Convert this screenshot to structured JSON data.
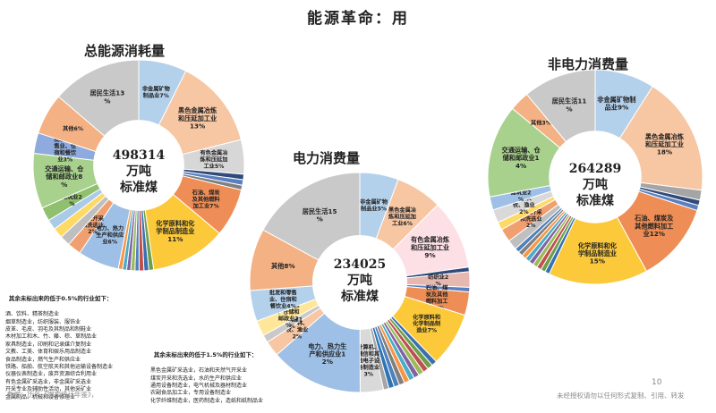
{
  "page": {
    "title": "能源革命：用",
    "page_number": "10",
    "source": "数据：历年《国家统计年鉴》，",
    "copyright": "未经授权请勿以任何形式复制、引用、转发"
  },
  "notes": {
    "left_heading": "其余未标出来的低于0.5%的行业如下：",
    "left_lines": [
      "酒、饮料、精茶制造业",
      "烟草制造业，纺织服装、服饰业",
      "皮革、毛皮、羽毛及其制品和制鞋业",
      "木材加工和木、竹、藤、棕、草制品业",
      "家具制造业，印刷和记录媒介复制业",
      "文教、工美、体育和娱乐用品制造业",
      "食品制造业，燃气生产和供应业",
      "铁路、船舶、航空航天和其他运输设备制造业",
      "仪器仪表制造业，废弃资源综合利用业",
      "有色金属矿采选业，非金属矿采选业",
      "开采专业及辅助性活动，其他采矿业",
      "金属制品、机械和设备修理业"
    ],
    "right_heading": "其余未标出来的低于1.5%的行业如下：",
    "right_lines": [
      "黑色金属矿采选业，石油和天然气开采业",
      "煤炭开采和洗选业，水的生产和供应业",
      "通用设备制造业，电气机械及器材制造业",
      "农副食品加工业，专用设备制造业",
      "化学纤维制造业，医药制造业，造纸和纸制品业"
    ]
  },
  "chart_data": [
    {
      "type": "pie",
      "title": "总能源消耗量",
      "center": [
        "498314",
        "万吨",
        "标准煤"
      ],
      "slices": [
        {
          "label": "非金属矿物制品业7%",
          "value": 7,
          "color": "#b4d1ec"
        },
        {
          "label": "黑色金属冶炼和压延加工业13%",
          "value": 13,
          "color": "#f7c6a3"
        },
        {
          "label": "有色金属冶炼和压延加工业5%",
          "value": 5,
          "color": "#d7d7d7"
        },
        {
          "label": "",
          "value": 0.8,
          "color": "#2e4b7c"
        },
        {
          "label": "",
          "value": 0.8,
          "color": "#5a7fc0"
        },
        {
          "label": "",
          "value": 0.7,
          "color": "#7f7f7f"
        },
        {
          "label": "石油、煤炭及其他燃料加工业7%",
          "value": 7,
          "color": "#ee8d55"
        },
        {
          "label": "化学原料和化学制品制造业11%",
          "value": 11,
          "color": "#fbc93a"
        },
        {
          "label": "",
          "value": 0.7,
          "color": "#6b9f4a"
        },
        {
          "label": "",
          "value": 0.7,
          "color": "#3a6fb0"
        },
        {
          "label": "",
          "value": 0.7,
          "color": "#c0504d"
        },
        {
          "label": "",
          "value": 0.6,
          "color": "#4f81bd"
        },
        {
          "label": "",
          "value": 0.6,
          "color": "#9bbb59"
        },
        {
          "label": "",
          "value": 0.6,
          "color": "#8064a2"
        },
        {
          "label": "",
          "value": 0.6,
          "color": "#4bacc6"
        },
        {
          "label": "",
          "value": 0.6,
          "color": "#f79646"
        },
        {
          "label": "电力、热力生产和供应业6%",
          "value": 6,
          "color": "#9ec0e6"
        },
        {
          "label": "煤炭开采和洗选业2%",
          "value": 2,
          "color": "#f0a070"
        },
        {
          "label": "",
          "value": 1.5,
          "color": "#bfbfbf"
        },
        {
          "label": "",
          "value": 1.5,
          "color": "#ffd966"
        },
        {
          "label": "",
          "value": 1.5,
          "color": "#a9cbe8"
        },
        {
          "label": "建筑业2%",
          "value": 2,
          "color": "#8fbf6f"
        },
        {
          "label": "交通运输、仓储和邮政业8%",
          "value": 8,
          "color": "#a8d18d"
        },
        {
          "label": "批发和零售业、住宿和餐饮业3%",
          "value": 3,
          "color": "#8faadc"
        },
        {
          "label": "其他6%",
          "value": 6,
          "color": "#f4b183"
        },
        {
          "label": "居民生活13%",
          "value": 13,
          "color": "#c9c9c9"
        }
      ]
    },
    {
      "type": "pie",
      "title": "电力消费量",
      "center": [
        "234025",
        "万吨",
        "标准煤"
      ],
      "slices": [
        {
          "label": "非金属矿物制品业5%",
          "value": 5,
          "color": "#b4d1ec"
        },
        {
          "label": "黑色金属冶炼和压延加工业6%",
          "value": 6,
          "color": "#f7c6a3"
        },
        {
          "label": "有色金属冶炼和压延加工业9%",
          "value": 9,
          "color": "#fde0e6"
        },
        {
          "label": "",
          "value": 0.6,
          "color": "#2e4b7c"
        },
        {
          "label": "纺织业2%",
          "value": 2,
          "color": "#e6b8af"
        },
        {
          "label": "",
          "value": 0.6,
          "color": "#5a7fc0"
        },
        {
          "label": "石油、煤炭及其他燃料加工业3%",
          "value": 3,
          "color": "#ee8d55"
        },
        {
          "label": "化学原料和化学制品制造业7%",
          "value": 7,
          "color": "#fbc93a"
        },
        {
          "label": "",
          "value": 0.7,
          "color": "#3a6fb0"
        },
        {
          "label": "",
          "value": 0.7,
          "color": "#6b9f4a"
        },
        {
          "label": "",
          "value": 0.7,
          "color": "#c0504d"
        },
        {
          "label": "",
          "value": 0.7,
          "color": "#9bbb59"
        },
        {
          "label": "",
          "value": 0.7,
          "color": "#8064a2"
        },
        {
          "label": "",
          "value": 0.7,
          "color": "#4bacc6"
        },
        {
          "label": "",
          "value": 0.7,
          "color": "#f79646"
        },
        {
          "label": "",
          "value": 0.7,
          "color": "#7f7f7f"
        },
        {
          "label": "",
          "value": 0.7,
          "color": "#4f81bd"
        },
        {
          "label": "",
          "value": 0.7,
          "color": "#2e75b6"
        },
        {
          "label": "",
          "value": 0.7,
          "color": "#a5a5a5"
        },
        {
          "label": "计算机、通信和其他电子设备制造业3%",
          "value": 3,
          "color": "#d9d9d9"
        },
        {
          "label": "电力、热力生产和供应业12%",
          "value": 12,
          "color": "#9ec0e6"
        },
        {
          "label": "农、林、牧、渔业2%",
          "value": 2,
          "color": "#f7c6a3"
        },
        {
          "label": "建筑业1%",
          "value": 1,
          "color": "#c9c9c9"
        },
        {
          "label": "交通运输、仓储和邮政业2%",
          "value": 2,
          "color": "#ffe699"
        },
        {
          "label": "批发和零售业、住宿和餐饮业4%",
          "value": 4,
          "color": "#b4d1ec"
        },
        {
          "label": "其他8%",
          "value": 8,
          "color": "#f4b183"
        },
        {
          "label": "居民生活15%",
          "value": 15,
          "color": "#c9c9c9"
        }
      ]
    },
    {
      "type": "pie",
      "title": "非电力消费量",
      "center": [
        "264289",
        "万吨",
        "标准煤"
      ],
      "slices": [
        {
          "label": "非金属矿物制品业9%",
          "value": 9,
          "color": "#b4d1ec"
        },
        {
          "label": "黑色金属冶炼和压延加工业18%",
          "value": 18,
          "color": "#f7c6a3"
        },
        {
          "label": "",
          "value": 1.5,
          "color": "#a5a5a5"
        },
        {
          "label": "",
          "value": 0.8,
          "color": "#2e4b7c"
        },
        {
          "label": "",
          "value": 0.8,
          "color": "#5a7fc0"
        },
        {
          "label": "石油、煤炭及其他燃料加工业12%",
          "value": 12,
          "color": "#ee8d55"
        },
        {
          "label": "化学原料和化学制品制造业15%",
          "value": 15,
          "color": "#fbc93a"
        },
        {
          "label": "",
          "value": 0.7,
          "color": "#3a6fb0"
        },
        {
          "label": "",
          "value": 0.7,
          "color": "#6b9f4a"
        },
        {
          "label": "",
          "value": 0.7,
          "color": "#c0504d"
        },
        {
          "label": "",
          "value": 0.7,
          "color": "#9bbb59"
        },
        {
          "label": "",
          "value": 0.7,
          "color": "#8064a2"
        },
        {
          "label": "",
          "value": 0.7,
          "color": "#4bacc6"
        },
        {
          "label": "",
          "value": 0.7,
          "color": "#f79646"
        },
        {
          "label": "",
          "value": 0.7,
          "color": "#7f7f7f"
        },
        {
          "label": "",
          "value": 0.7,
          "color": "#4f81bd"
        },
        {
          "label": "",
          "value": 1.5,
          "color": "#bfbfbf"
        },
        {
          "label": "煤炭开采和洗选业2%",
          "value": 2,
          "color": "#f0a070"
        },
        {
          "label": "",
          "value": 1.2,
          "color": "#ffd966"
        },
        {
          "label": "农、林、牧、渔业2%",
          "value": 2,
          "color": "#d9d9d9"
        },
        {
          "label": "建筑业2%",
          "value": 2,
          "color": "#9ec0e6"
        },
        {
          "label": "交通运输、仓储和邮政业14%",
          "value": 14,
          "color": "#a8d18d"
        },
        {
          "label": "其他3%",
          "value": 3,
          "color": "#f4b183"
        },
        {
          "label": "居民生活11%",
          "value": 11,
          "color": "#c9c9c9"
        }
      ]
    }
  ]
}
